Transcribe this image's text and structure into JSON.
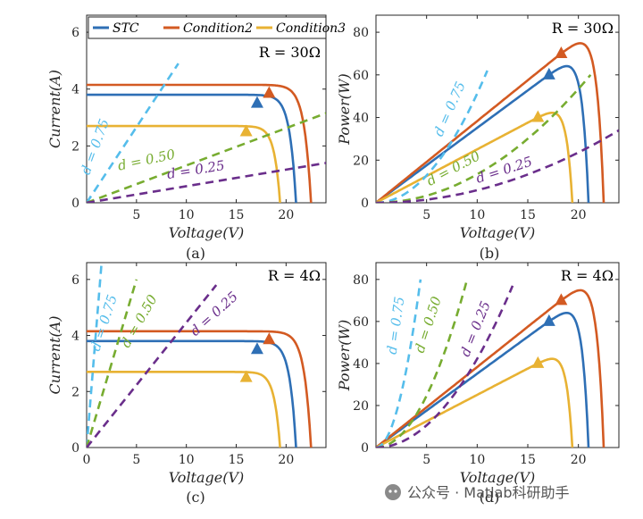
{
  "colors": {
    "STC": "#2E6FB5",
    "Condition2": "#D35A22",
    "Condition3": "#E8B233",
    "d075": "#55BDEB",
    "d050": "#77AC30",
    "d025": "#6A2E8B"
  },
  "legend": {
    "items": [
      "STC",
      "Condition2",
      "Condition3"
    ],
    "placement": "top-left"
  },
  "watermark": "公众号 · Matlab科研助手",
  "chart_data": [
    {
      "type": "line",
      "panel": "(a)",
      "xlabel": "Voltage(V)",
      "ylabel": "Current(A)",
      "annotation": "R = 30Ω",
      "xlim": [
        0,
        24
      ],
      "ylim": [
        0,
        6.6
      ],
      "xticks": [
        5,
        10,
        15,
        20
      ],
      "yticks": [
        0,
        2,
        4,
        6
      ],
      "series": [
        {
          "name": "STC",
          "kind": "iv",
          "isc": 3.8,
          "voc": 21.0,
          "mpp": [
            17.1,
            3.5
          ]
        },
        {
          "name": "Condition2",
          "kind": "iv",
          "isc": 4.15,
          "voc": 22.5,
          "mpp": [
            18.3,
            3.85
          ]
        },
        {
          "name": "Condition3",
          "kind": "iv",
          "isc": 2.7,
          "voc": 19.4,
          "mpp": [
            16.0,
            2.5
          ]
        },
        {
          "name": "d = 0.75",
          "kind": "load",
          "x": [
            0,
            9.2
          ],
          "y": [
            0,
            4.9
          ]
        },
        {
          "name": "d = 0.50",
          "kind": "load",
          "x": [
            0,
            24
          ],
          "y": [
            0,
            3.15
          ]
        },
        {
          "name": "d = 0.25",
          "kind": "load",
          "x": [
            0,
            24
          ],
          "y": [
            0,
            1.4
          ]
        }
      ]
    },
    {
      "type": "line",
      "panel": "(b)",
      "xlabel": "Voltage(V)",
      "ylabel": "Power(W)",
      "annotation": "R = 30Ω",
      "xlim": [
        0,
        24
      ],
      "ylim": [
        0,
        88
      ],
      "xticks": [
        5,
        10,
        15,
        20
      ],
      "yticks": [
        0,
        20,
        40,
        60,
        80
      ],
      "series": [
        {
          "name": "STC",
          "kind": "pv",
          "isc": 3.8,
          "voc": 21.0,
          "mpp": [
            17.1,
            60
          ]
        },
        {
          "name": "Condition2",
          "kind": "pv",
          "isc": 4.15,
          "voc": 22.5,
          "mpp": [
            18.3,
            70
          ]
        },
        {
          "name": "Condition3",
          "kind": "pv",
          "isc": 2.7,
          "voc": 19.4,
          "mpp": [
            16.0,
            40
          ]
        },
        {
          "name": "d = 0.75",
          "kind": "parab",
          "x": [
            0,
            11
          ],
          "y": [
            0,
            62
          ]
        },
        {
          "name": "d = 0.50",
          "kind": "parab",
          "x": [
            0,
            21.2
          ],
          "y": [
            0,
            60
          ]
        },
        {
          "name": "d = 0.25",
          "kind": "parab",
          "x": [
            0,
            24
          ],
          "y": [
            0,
            34
          ]
        }
      ]
    },
    {
      "type": "line",
      "panel": "(c)",
      "xlabel": "Voltage(V)",
      "ylabel": "Current(A)",
      "annotation": "R = 4Ω",
      "xlim": [
        0,
        24
      ],
      "ylim": [
        0,
        6.6
      ],
      "xticks": [
        0,
        5,
        10,
        15,
        20
      ],
      "yticks": [
        0,
        2,
        4,
        6
      ],
      "series": [
        {
          "name": "STC",
          "kind": "iv",
          "isc": 3.8,
          "voc": 21.0,
          "mpp": [
            17.1,
            3.5
          ]
        },
        {
          "name": "Condition2",
          "kind": "iv",
          "isc": 4.15,
          "voc": 22.5,
          "mpp": [
            18.3,
            3.85
          ]
        },
        {
          "name": "Condition3",
          "kind": "iv",
          "isc": 2.7,
          "voc": 19.4,
          "mpp": [
            16.0,
            2.5
          ]
        },
        {
          "name": "d = 0.75",
          "kind": "load",
          "x": [
            0,
            1.5
          ],
          "y": [
            0,
            6.6
          ]
        },
        {
          "name": "d = 0.50",
          "kind": "load",
          "x": [
            0,
            5.0
          ],
          "y": [
            0,
            6.0
          ]
        },
        {
          "name": "d = 0.25",
          "kind": "load",
          "x": [
            0,
            13.0
          ],
          "y": [
            0,
            5.8
          ]
        }
      ]
    },
    {
      "type": "line",
      "panel": "(d)",
      "xlabel": "Voltage(V)",
      "ylabel": "Power(W)",
      "annotation": "R = 4Ω",
      "xlim": [
        0,
        24
      ],
      "ylim": [
        0,
        88
      ],
      "xticks": [
        5,
        10,
        15,
        20
      ],
      "yticks": [
        0,
        20,
        40,
        60,
        80
      ],
      "series": [
        {
          "name": "STC",
          "kind": "pv",
          "isc": 3.8,
          "voc": 21.0,
          "mpp": [
            17.1,
            60
          ]
        },
        {
          "name": "Condition2",
          "kind": "pv",
          "isc": 4.15,
          "voc": 22.5,
          "mpp": [
            18.3,
            70
          ]
        },
        {
          "name": "Condition3",
          "kind": "pv",
          "isc": 2.7,
          "voc": 19.4,
          "mpp": [
            16.0,
            40
          ]
        },
        {
          "name": "d = 0.75",
          "kind": "parab",
          "x": [
            0,
            4.4
          ],
          "y": [
            0,
            80
          ]
        },
        {
          "name": "d = 0.50",
          "kind": "parab",
          "x": [
            0,
            9.0
          ],
          "y": [
            0,
            80
          ]
        },
        {
          "name": "d = 0.25",
          "kind": "parab",
          "x": [
            0,
            13.5
          ],
          "y": [
            0,
            77
          ]
        }
      ]
    }
  ]
}
